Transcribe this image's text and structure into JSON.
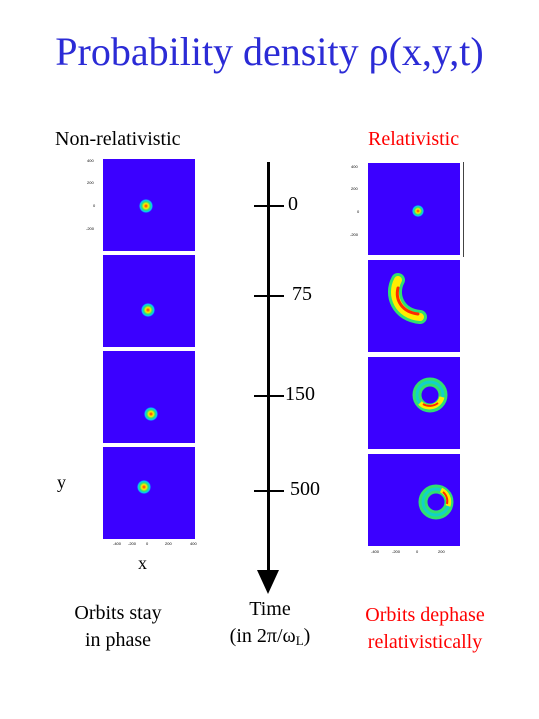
{
  "title": "Probability density ρ(x,y,t)",
  "headers": {
    "non_relativistic": "Non-relativistic",
    "relativistic": "Relativistic"
  },
  "axis_labels": {
    "y": "y",
    "x": "x"
  },
  "time_axis": {
    "ticks": [
      "0",
      "75",
      "150",
      "500"
    ]
  },
  "captions": {
    "left_line1": "Orbits stay",
    "left_line2": "in phase",
    "mid_line1": "Time",
    "mid_line2_prefix": "(in 2π/ω",
    "mid_sub": "L",
    "mid_suffix": ")",
    "right_line1": "Orbits dephase",
    "right_line2": "relativistically"
  },
  "colors": {
    "title": "#2b2bd6",
    "relativistic": "#ff0000",
    "plot_background": "#3b00ff"
  },
  "tick_text": {
    "left_y": [
      "400",
      "200",
      "0",
      "-200",
      "-400"
    ],
    "left_x": [
      "-400",
      "-200",
      "0",
      "200",
      "400"
    ],
    "right_y": [
      "400",
      "200",
      "0",
      "-200",
      "-400"
    ],
    "right_x": [
      "-400",
      "-200",
      "0",
      "200"
    ]
  }
}
